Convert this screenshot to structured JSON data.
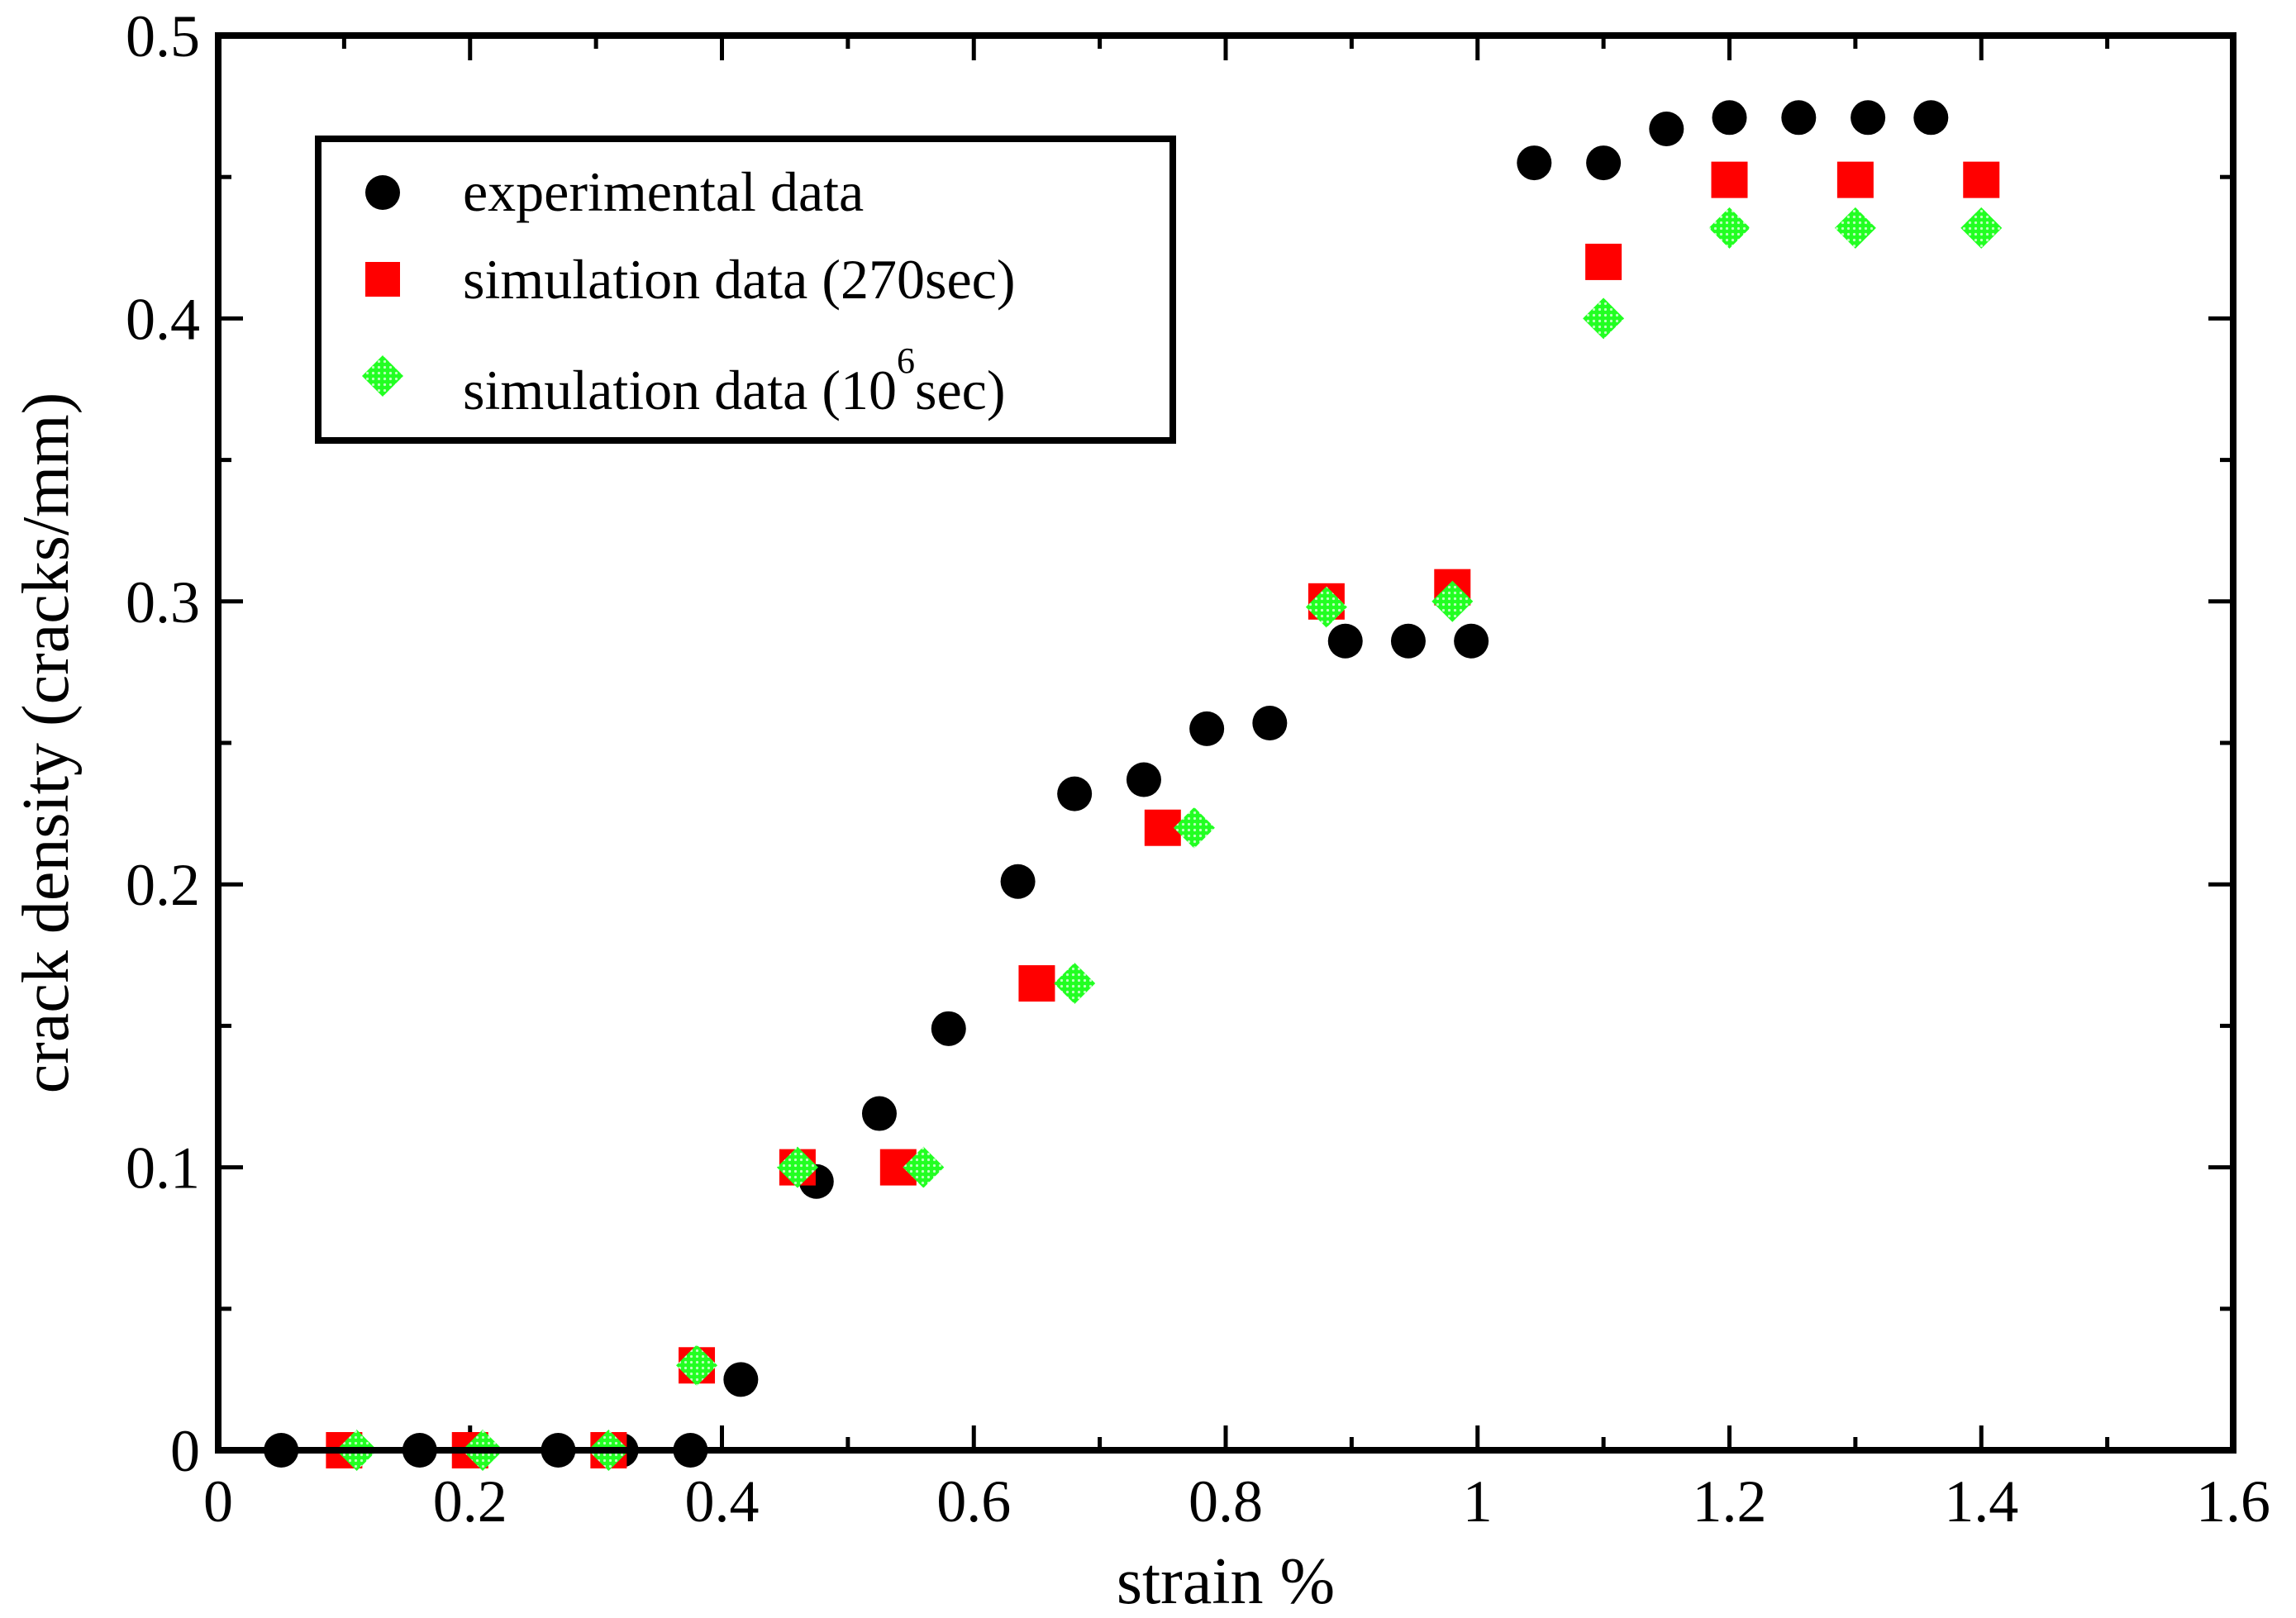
{
  "chart_data": {
    "type": "scatter",
    "xlabel": "strain %",
    "ylabel": "crack density (cracks/mm)",
    "xlim": [
      0,
      1.6
    ],
    "ylim": [
      0,
      0.5
    ],
    "xticks": [
      "0",
      "0.2",
      "0.4",
      "0.6",
      "0.8",
      "1",
      "1.2",
      "1.4",
      "1.6"
    ],
    "yticks": [
      "0",
      "0.1",
      "0.2",
      "0.3",
      "0.4",
      "0.5"
    ],
    "grid": false,
    "legend_position": "top-left",
    "series": [
      {
        "name": "experimental data",
        "marker": "circle",
        "color": "#000000",
        "points": [
          [
            0.05,
            0
          ],
          [
            0.16,
            0
          ],
          [
            0.27,
            0
          ],
          [
            0.32,
            0
          ],
          [
            0.375,
            0
          ],
          [
            0.415,
            0.025
          ],
          [
            0.475,
            0.095
          ],
          [
            0.525,
            0.119
          ],
          [
            0.58,
            0.149
          ],
          [
            0.635,
            0.201
          ],
          [
            0.68,
            0.232
          ],
          [
            0.735,
            0.237
          ],
          [
            0.785,
            0.255
          ],
          [
            0.835,
            0.257
          ],
          [
            0.895,
            0.286
          ],
          [
            0.945,
            0.286
          ],
          [
            0.995,
            0.286
          ],
          [
            1.045,
            0.455
          ],
          [
            1.1,
            0.455
          ],
          [
            1.15,
            0.467
          ],
          [
            1.2,
            0.471
          ],
          [
            1.255,
            0.471
          ],
          [
            1.31,
            0.471
          ],
          [
            1.36,
            0.471
          ]
        ]
      },
      {
        "name_main": "simulation data (270sec)",
        "marker": "square",
        "color": "#ff0000",
        "points": [
          [
            0.1,
            0
          ],
          [
            0.2,
            0
          ],
          [
            0.31,
            0
          ],
          [
            0.38,
            0.03
          ],
          [
            0.46,
            0.1
          ],
          [
            0.54,
            0.1
          ],
          [
            0.65,
            0.165
          ],
          [
            0.75,
            0.22
          ],
          [
            0.88,
            0.3
          ],
          [
            0.98,
            0.305
          ],
          [
            1.1,
            0.42
          ],
          [
            1.2,
            0.449
          ],
          [
            1.3,
            0.449
          ],
          [
            1.4,
            0.449
          ]
        ]
      },
      {
        "name_main": "simulation data (10",
        "name_sup": "6",
        "name_tail": "sec)",
        "marker": "diamond",
        "color": "#00ee00",
        "points": [
          [
            0.11,
            0
          ],
          [
            0.21,
            0
          ],
          [
            0.31,
            0
          ],
          [
            0.38,
            0.03
          ],
          [
            0.46,
            0.1
          ],
          [
            0.56,
            0.1
          ],
          [
            0.68,
            0.165
          ],
          [
            0.775,
            0.22
          ],
          [
            0.88,
            0.298
          ],
          [
            0.98,
            0.3
          ],
          [
            1.1,
            0.4
          ],
          [
            1.2,
            0.432
          ],
          [
            1.3,
            0.432
          ],
          [
            1.4,
            0.432
          ]
        ]
      }
    ]
  }
}
